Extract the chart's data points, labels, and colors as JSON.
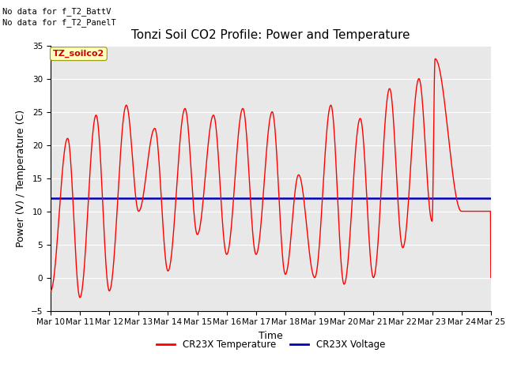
{
  "title": "Tonzi Soil CO2 Profile: Power and Temperature",
  "xlabel": "Time",
  "ylabel": "Power (V) / Temperature (C)",
  "ylim": [
    -5,
    35
  ],
  "yticks": [
    -5,
    0,
    5,
    10,
    15,
    20,
    25,
    30,
    35
  ],
  "x_labels": [
    "Mar 10",
    "Mar 11",
    "Mar 12",
    "Mar 13",
    "Mar 14",
    "Mar 15",
    "Mar 16",
    "Mar 17",
    "Mar 18",
    "Mar 19",
    "Mar 20",
    "Mar 21",
    "Mar 22",
    "Mar 23",
    "Mar 24",
    "Mar 25"
  ],
  "voltage_value": 12.0,
  "text_no_data_1": "No data for f_T2_BattV",
  "text_no_data_2": "No data for f_T2_PanelT",
  "legend_label_box": "TZ_soilco2",
  "temp_color": "#FF0000",
  "volt_color": "#0000BB",
  "background_color": "#E8E8E8",
  "title_fontsize": 11,
  "axis_fontsize": 9,
  "tick_fontsize": 7.5,
  "legend_temp": "CR23X Temperature",
  "legend_volt": "CR23X Voltage"
}
